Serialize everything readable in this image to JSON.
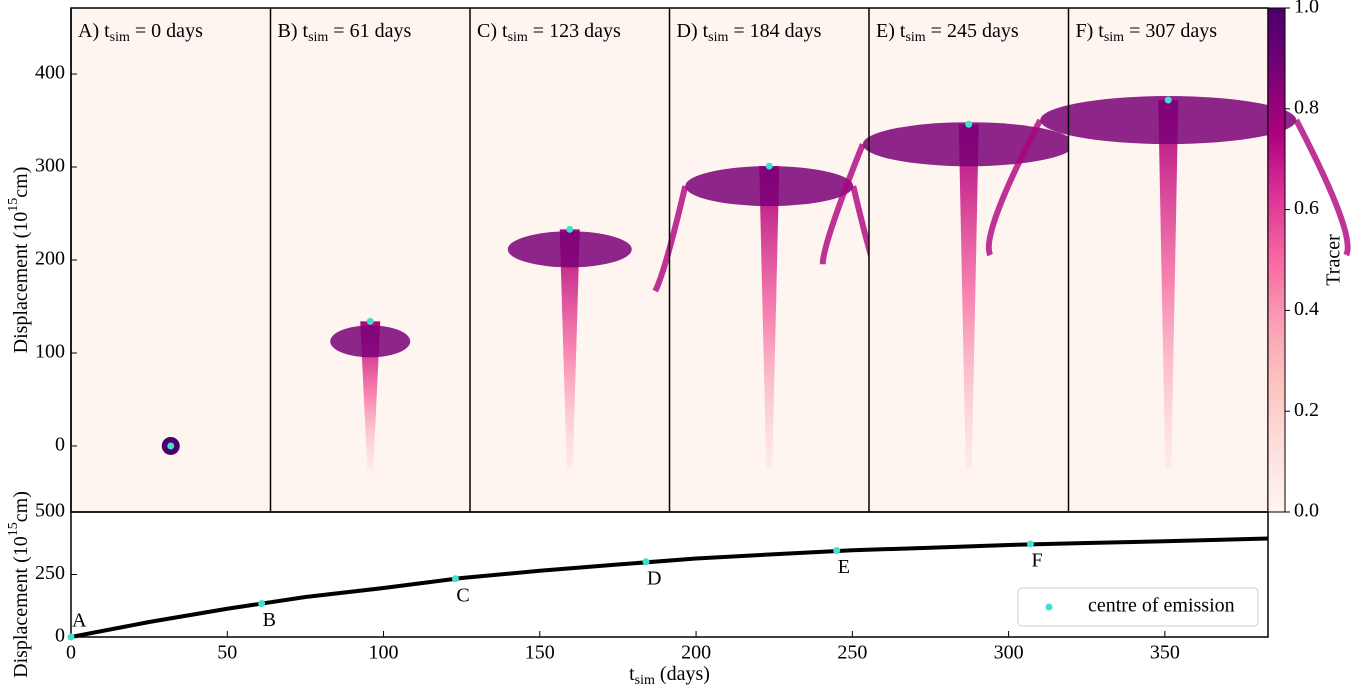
{
  "chart_data": [
    {
      "type": "panels",
      "ylabel": {
        "text": "Displacement (10",
        "sup": "15",
        "after": "cm)"
      },
      "ylim": [
        -71,
        471
      ],
      "yticks": [
        0,
        100,
        200,
        300,
        400
      ],
      "background": "#fff5f0",
      "marker_color": "#40e0d0",
      "panels": [
        {
          "label": "A) t",
          "sub": "sim",
          "rest": " = 0 days",
          "centre": 0
        },
        {
          "label": "B) t",
          "sub": "sim",
          "rest": " = 61 days",
          "centre": 134
        },
        {
          "label": "C) t",
          "sub": "sim",
          "rest": " = 123 days",
          "centre": 233
        },
        {
          "label": "D) t",
          "sub": "sim",
          "rest": " = 184 days",
          "centre": 301
        },
        {
          "label": "E) t",
          "sub": "sim",
          "rest": " = 245 days",
          "centre": 346
        },
        {
          "label": "F) t",
          "sub": "sim",
          "rest": " = 307 days",
          "centre": 372
        }
      ]
    },
    {
      "type": "colorbar",
      "label": "Tracer",
      "lim": [
        0,
        1
      ],
      "ticks": [
        {
          "value": 0,
          "label": "0.0"
        },
        {
          "value": 0.2,
          "label": "0.2"
        },
        {
          "value": 0.4,
          "label": "0.4"
        },
        {
          "value": 0.6,
          "label": "0.6"
        },
        {
          "value": 0.8,
          "label": "0.8"
        },
        {
          "value": 1,
          "label": "1.0"
        }
      ],
      "colors": [
        "#fff5f0",
        "#fde0dd",
        "#fcc5c0",
        "#fa9fb5",
        "#f768a1",
        "#dd3497",
        "#ae017e",
        "#7a0177",
        "#49006a"
      ]
    },
    {
      "type": "line",
      "xlabel": {
        "text": "t",
        "sub": "sim",
        "after": " (days)"
      },
      "ylabel": {
        "text": "Displacement (10",
        "sup": "15",
        "after": "cm)"
      },
      "xlim": [
        0,
        383
      ],
      "ylim": [
        0,
        500
      ],
      "xticks": [
        0,
        50,
        100,
        150,
        200,
        250,
        300,
        350
      ],
      "yticks": [
        0,
        250,
        500
      ],
      "legend": "lower right",
      "series": [
        {
          "color": "#000000",
          "x": [
            0,
            25,
            50,
            75,
            100,
            125,
            150,
            175,
            200,
            225,
            250,
            275,
            300,
            325,
            350,
            383
          ],
          "values": [
            0,
            60,
            113,
            160,
            196,
            236,
            265,
            290,
            314,
            331,
            347,
            357,
            368,
            376,
            383,
            394
          ]
        },
        {
          "name": "centre of emission",
          "type": "scatter",
          "color": "#40e0d0",
          "x": [
            0,
            61,
            123,
            184,
            245,
            307
          ],
          "values": [
            0,
            134,
            233,
            301,
            346,
            372
          ],
          "point_labels": [
            "A",
            "B",
            "C",
            "D",
            "E",
            "F"
          ]
        }
      ]
    }
  ]
}
